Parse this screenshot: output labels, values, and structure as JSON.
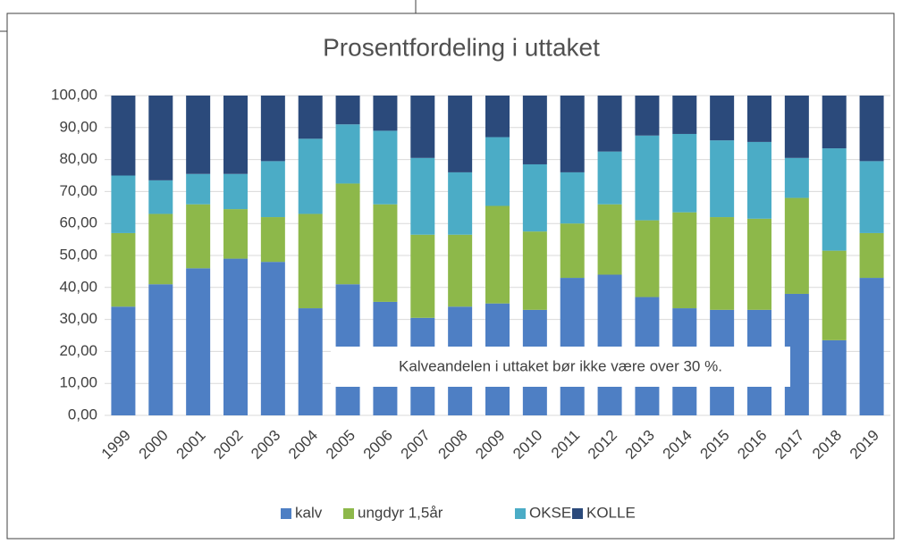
{
  "chart_data": {
    "type": "stacked_bar",
    "title": "Prosentfordeling i uttaket",
    "categories": [
      "1999",
      "2000",
      "2001",
      "2002",
      "2003",
      "2004",
      "2005",
      "2006",
      "2007",
      "2008",
      "2009",
      "2010",
      "2011",
      "2012",
      "2013",
      "2014",
      "2015",
      "2016",
      "2017",
      "2018",
      "2019"
    ],
    "series": [
      {
        "name": "kalv",
        "color": "#4e7fc4",
        "values": [
          34,
          41,
          46,
          49,
          48,
          33.5,
          41,
          35.5,
          30.5,
          34,
          35,
          33,
          43,
          44,
          37,
          33.5,
          33,
          33,
          38,
          23.5,
          43
        ]
      },
      {
        "name": "ungdyr 1,5år",
        "color": "#8db84a",
        "values": [
          23,
          22,
          20,
          15.5,
          14,
          29.5,
          31.5,
          30.5,
          26,
          22.5,
          30.5,
          24.5,
          17,
          22,
          24,
          30,
          29,
          28.5,
          30,
          28,
          14
        ]
      },
      {
        "name": "OKSE",
        "color": "#4bacc6",
        "values": [
          18,
          10.5,
          9.5,
          11,
          17.5,
          23.5,
          18.5,
          23,
          24,
          19.5,
          21.5,
          21,
          16,
          16.5,
          26.5,
          24.5,
          24,
          24,
          12.5,
          32,
          22.5
        ]
      },
      {
        "name": "KOLLE",
        "color": "#2b4a7b",
        "values": [
          25,
          26.5,
          24.5,
          24.5,
          20.5,
          13.5,
          9,
          11,
          19.5,
          24,
          13,
          21.5,
          24,
          17.5,
          12.5,
          12,
          14,
          14.5,
          19.5,
          16.5,
          20.5
        ]
      }
    ],
    "ylim": [
      0,
      100
    ],
    "yticks": [
      {
        "value": 0,
        "label": "0,00"
      },
      {
        "value": 10,
        "label": "10,00"
      },
      {
        "value": 20,
        "label": "20,00"
      },
      {
        "value": 30,
        "label": "30,00"
      },
      {
        "value": 40,
        "label": "40,00"
      },
      {
        "value": 50,
        "label": "50,00"
      },
      {
        "value": 60,
        "label": "60,00"
      },
      {
        "value": 70,
        "label": "70,00"
      },
      {
        "value": 80,
        "label": "80,00"
      },
      {
        "value": 90,
        "label": "90,00"
      },
      {
        "value": 100,
        "label": "100,00"
      }
    ],
    "grid": true,
    "annotation": "Kalveandelen i uttaket bør ikke være over 30 %.",
    "legend": "bottom"
  }
}
